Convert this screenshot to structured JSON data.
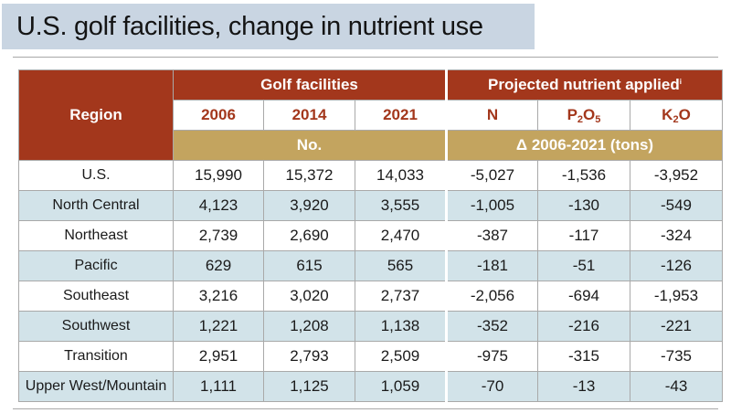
{
  "title": "U.S. golf facilities, change in nutrient use",
  "table": {
    "region_header": "Region",
    "group_golf": "Golf facilities",
    "group_nutrient": "Projected nutrient applied",
    "group_nutrient_note": "i",
    "years": [
      "2006",
      "2014",
      "2021"
    ],
    "nutrients": [
      {
        "base": "N",
        "sub": "",
        "rest": ""
      },
      {
        "base": "P",
        "sub": "2",
        "rest": "O",
        "sub2": "5"
      },
      {
        "base": "K",
        "sub": "2",
        "rest": "O",
        "sub2": ""
      }
    ],
    "unit_golf": "No.",
    "unit_nutrient": "Δ 2006-2021 (tons)",
    "rows": [
      {
        "region": "U.S.",
        "y2006": "15,990",
        "y2014": "15,372",
        "y2021": "14,033",
        "n": "-5,027",
        "p": "-1,536",
        "k": "-3,952"
      },
      {
        "region": "North Central",
        "y2006": "4,123",
        "y2014": "3,920",
        "y2021": "3,555",
        "n": "-1,005",
        "p": "-130",
        "k": "-549"
      },
      {
        "region": "Northeast",
        "y2006": "2,739",
        "y2014": "2,690",
        "y2021": "2,470",
        "n": "-387",
        "p": "-117",
        "k": "-324"
      },
      {
        "region": "Pacific",
        "y2006": "629",
        "y2014": "615",
        "y2021": "565",
        "n": "-181",
        "p": "-51",
        "k": "-126"
      },
      {
        "region": "Southeast",
        "y2006": "3,216",
        "y2014": "3,020",
        "y2021": "2,737",
        "n": "-2,056",
        "p": "-694",
        "k": "-1,953"
      },
      {
        "region": "Southwest",
        "y2006": "1,221",
        "y2014": "1,208",
        "y2021": "1,138",
        "n": "-352",
        "p": "-216",
        "k": "-221"
      },
      {
        "region": "Transition",
        "y2006": "2,951",
        "y2014": "2,793",
        "y2021": "2,509",
        "n": "-975",
        "p": "-315",
        "k": "-735"
      },
      {
        "region": "Upper West/Mountain",
        "y2006": "1,111",
        "y2014": "1,125",
        "y2021": "1,059",
        "n": "-70",
        "p": "-13",
        "k": "-43"
      }
    ]
  },
  "colors": {
    "header_rust": "#a3371c",
    "unit_tan": "#c3a45f",
    "row_blue": "#d2e3e9",
    "title_bg": "#c9d5e2"
  }
}
